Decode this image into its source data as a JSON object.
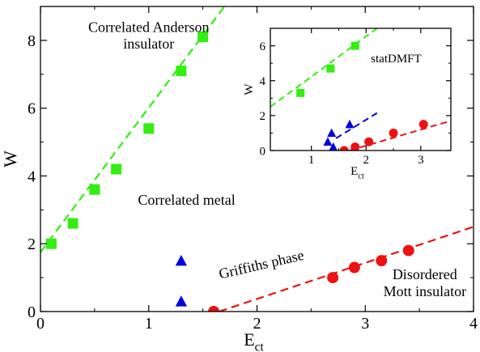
{
  "chart_data": [
    {
      "type": "scatter",
      "role": "main",
      "xlabel": "E",
      "xlabel_sub": "ct",
      "ylabel": "W",
      "xlim": [
        0,
        4
      ],
      "ylim": [
        0,
        9
      ],
      "xticks": [
        0,
        1,
        2,
        3,
        4
      ],
      "yticks": [
        0,
        2,
        4,
        6,
        8
      ],
      "grid": false,
      "series": [
        {
          "marker": "square",
          "color": "#33ee11",
          "x": [
            0.1,
            0.3,
            0.5,
            0.7,
            1.0,
            1.3,
            1.5
          ],
          "y": [
            2.0,
            2.6,
            3.6,
            4.2,
            5.4,
            7.1,
            8.1
          ]
        },
        {
          "marker": "triangle",
          "color": "#0000dd",
          "x": [
            1.3,
            1.3
          ],
          "y": [
            1.5,
            0.3
          ]
        },
        {
          "marker": "circle",
          "color": "#ee1111",
          "x": [
            1.6,
            2.7,
            2.9,
            3.15,
            3.4
          ],
          "y": [
            0.0,
            1.0,
            1.3,
            1.5,
            1.8
          ]
        }
      ],
      "fits": [
        {
          "color": "#33ee11",
          "x": [
            0.0,
            1.7
          ],
          "y": [
            1.75,
            9.0
          ]
        },
        {
          "color": "#ee1111",
          "x": [
            1.65,
            4.0
          ],
          "y": [
            0.0,
            2.5
          ]
        }
      ],
      "annotations": [
        {
          "lines": [
            "Correlated Anderson",
            "insulator"
          ],
          "x": 1.0,
          "y": 8.25,
          "rotate": 0
        },
        {
          "lines": [
            "Correlated metal"
          ],
          "x": 1.35,
          "y": 3.15,
          "rotate": 0
        },
        {
          "lines": [
            "Griffiths phase"
          ],
          "x": 2.05,
          "y": 1.25,
          "rotate": -13
        },
        {
          "lines": [
            "Disordered",
            "Mott insulator"
          ],
          "x": 3.55,
          "y": 0.95,
          "rotate": 0
        }
      ]
    },
    {
      "type": "scatter",
      "role": "inset",
      "xlabel": "E",
      "xlabel_sub": "ct",
      "ylabel": "W",
      "xlim": [
        0.25,
        3.55
      ],
      "ylim": [
        0,
        7
      ],
      "xticks": [
        1,
        2,
        3
      ],
      "yticks": [
        0,
        2,
        4,
        6
      ],
      "grid": false,
      "series": [
        {
          "marker": "square",
          "color": "#33ee11",
          "x": [
            0.8,
            1.35,
            1.8
          ],
          "y": [
            3.3,
            4.7,
            6.0
          ]
        },
        {
          "marker": "triangle",
          "color": "#0000dd",
          "x": [
            1.3,
            1.37,
            1.4,
            1.7
          ],
          "y": [
            0.5,
            1.0,
            0.2,
            1.5
          ]
        },
        {
          "marker": "circle",
          "color": "#ee1111",
          "x": [
            1.6,
            1.8,
            2.05,
            2.5,
            3.05
          ],
          "y": [
            0.0,
            0.2,
            0.5,
            1.0,
            1.5
          ]
        }
      ],
      "fits": [
        {
          "color": "#33ee11",
          "x": [
            0.25,
            2.2
          ],
          "y": [
            2.5,
            7.0
          ]
        },
        {
          "color": "#ee1111",
          "x": [
            1.7,
            3.55
          ],
          "y": [
            0.0,
            1.7
          ]
        },
        {
          "color": "#0000dd",
          "x": [
            1.45,
            2.2
          ],
          "y": [
            0.7,
            2.15
          ]
        }
      ],
      "annotations": [
        {
          "lines": [
            "statDMFT"
          ],
          "x": 2.55,
          "y": 5.05,
          "rotate": 0
        }
      ]
    }
  ]
}
